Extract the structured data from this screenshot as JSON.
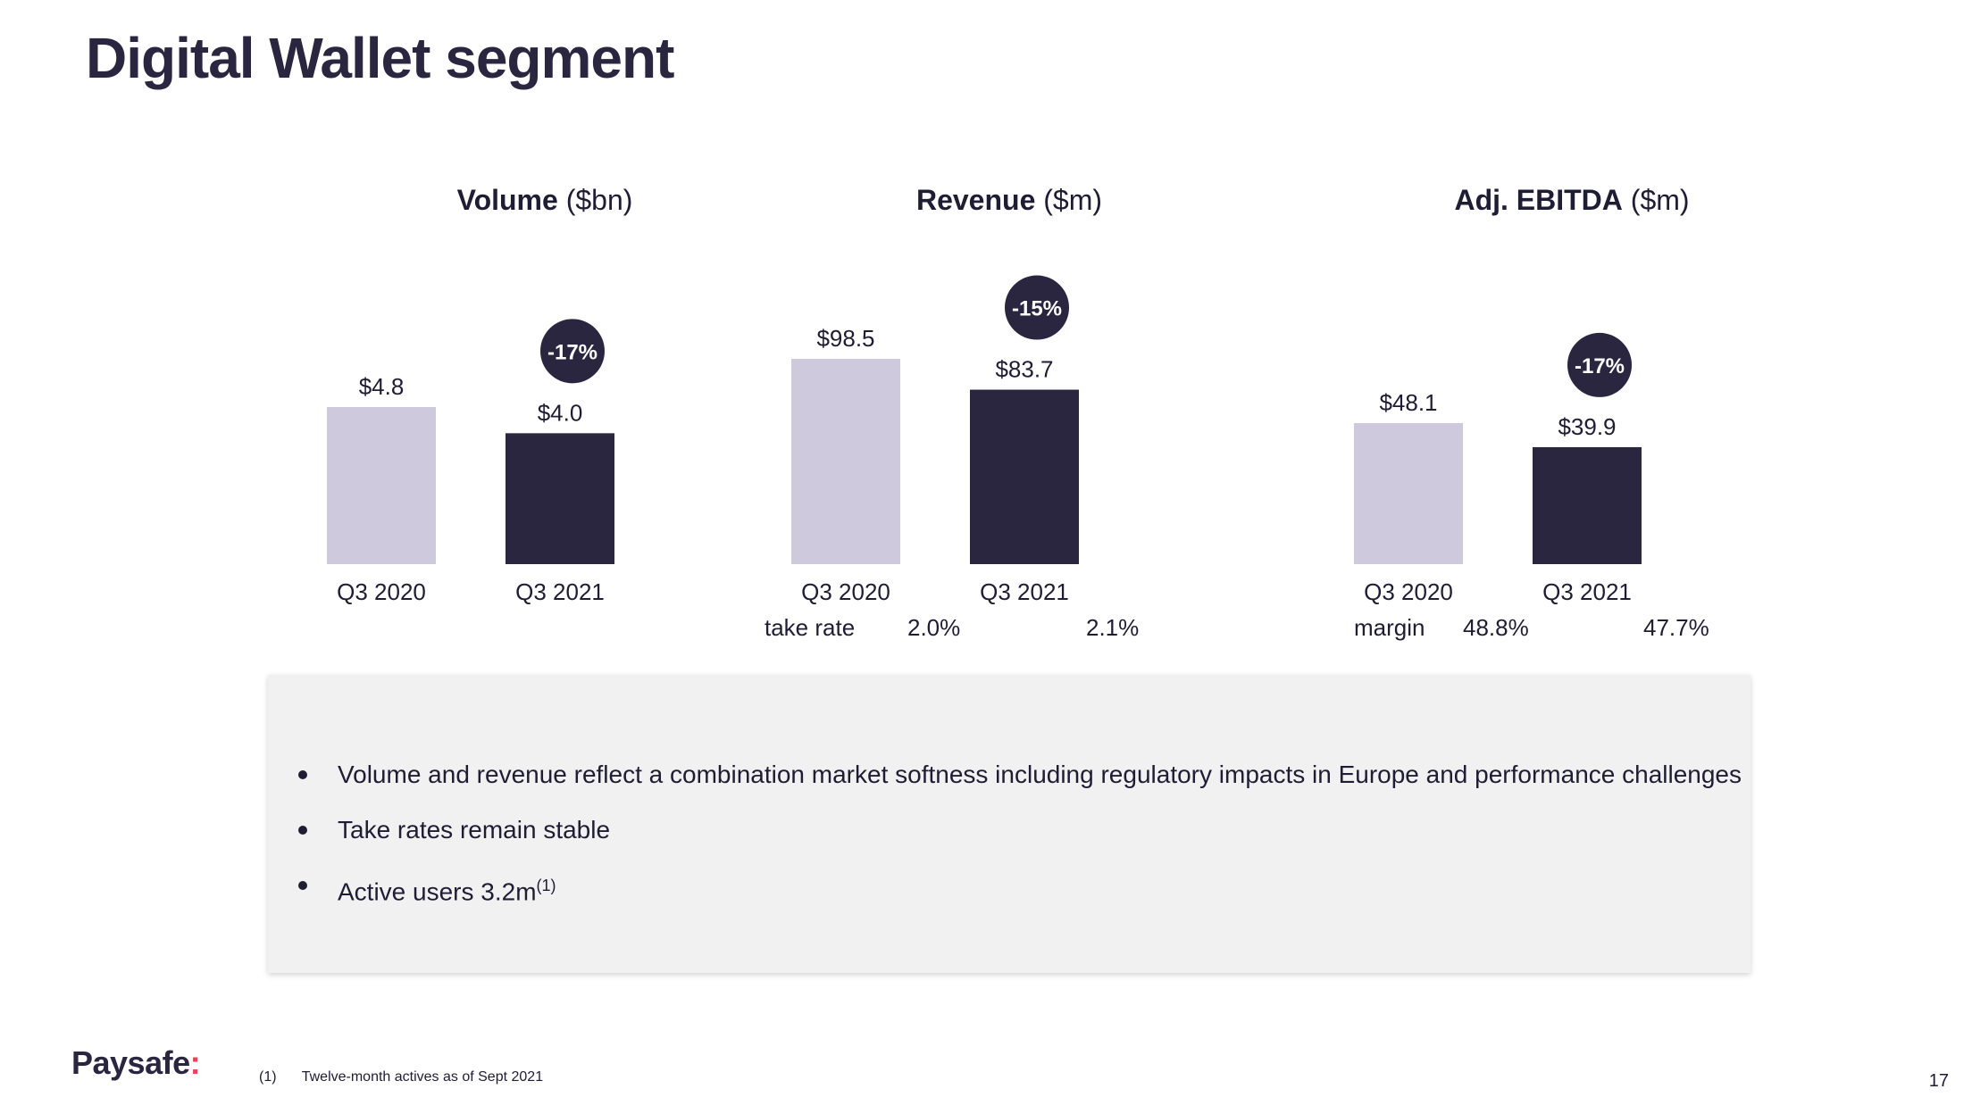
{
  "page": {
    "title": "Digital Wallet segment",
    "page_number": "17",
    "logo": {
      "text": "Paysafe",
      "suffix": ":"
    }
  },
  "colors": {
    "q3_2020": "#cfc9de",
    "q3_2021": "#2a2640",
    "badge": "#2a2640",
    "text": "#1f1d33",
    "panel": "#f1f1f1"
  },
  "chart_data": [
    {
      "type": "bar",
      "title": "Volume",
      "unit": "($bn)",
      "categories": [
        "Q3 2020",
        "Q3 2021"
      ],
      "values": [
        4.8,
        4.0
      ],
      "value_labels": [
        "$4.8",
        "$4.0"
      ],
      "change_badge": "-17%",
      "metric": null
    },
    {
      "type": "bar",
      "title": "Revenue",
      "unit": "($m)",
      "categories": [
        "Q3 2020",
        "Q3 2021"
      ],
      "values": [
        98.5,
        83.7
      ],
      "value_labels": [
        "$98.5",
        "$83.7"
      ],
      "change_badge": "-15%",
      "metric": {
        "label": "take rate",
        "values": [
          "2.0%",
          "2.1%"
        ]
      }
    },
    {
      "type": "bar",
      "title": "Adj. EBITDA",
      "unit": "($m)",
      "categories": [
        "Q3 2020",
        "Q3 2021"
      ],
      "values": [
        48.1,
        39.9
      ],
      "value_labels": [
        "$48.1",
        "$39.9"
      ],
      "change_badge": "-17%",
      "metric": {
        "label": "margin",
        "values": [
          "48.8%",
          "47.7%"
        ]
      }
    }
  ],
  "highlights": {
    "bullets": [
      "Volume and revenue reflect a combination market softness including regulatory impacts in Europe and performance challenges",
      "Take rates remain stable",
      "Active users 3.2m"
    ],
    "bullet3_superscript": "(1)"
  },
  "footnote": {
    "ref": "(1)",
    "text": "Twelve-month actives as of Sept 2021"
  }
}
